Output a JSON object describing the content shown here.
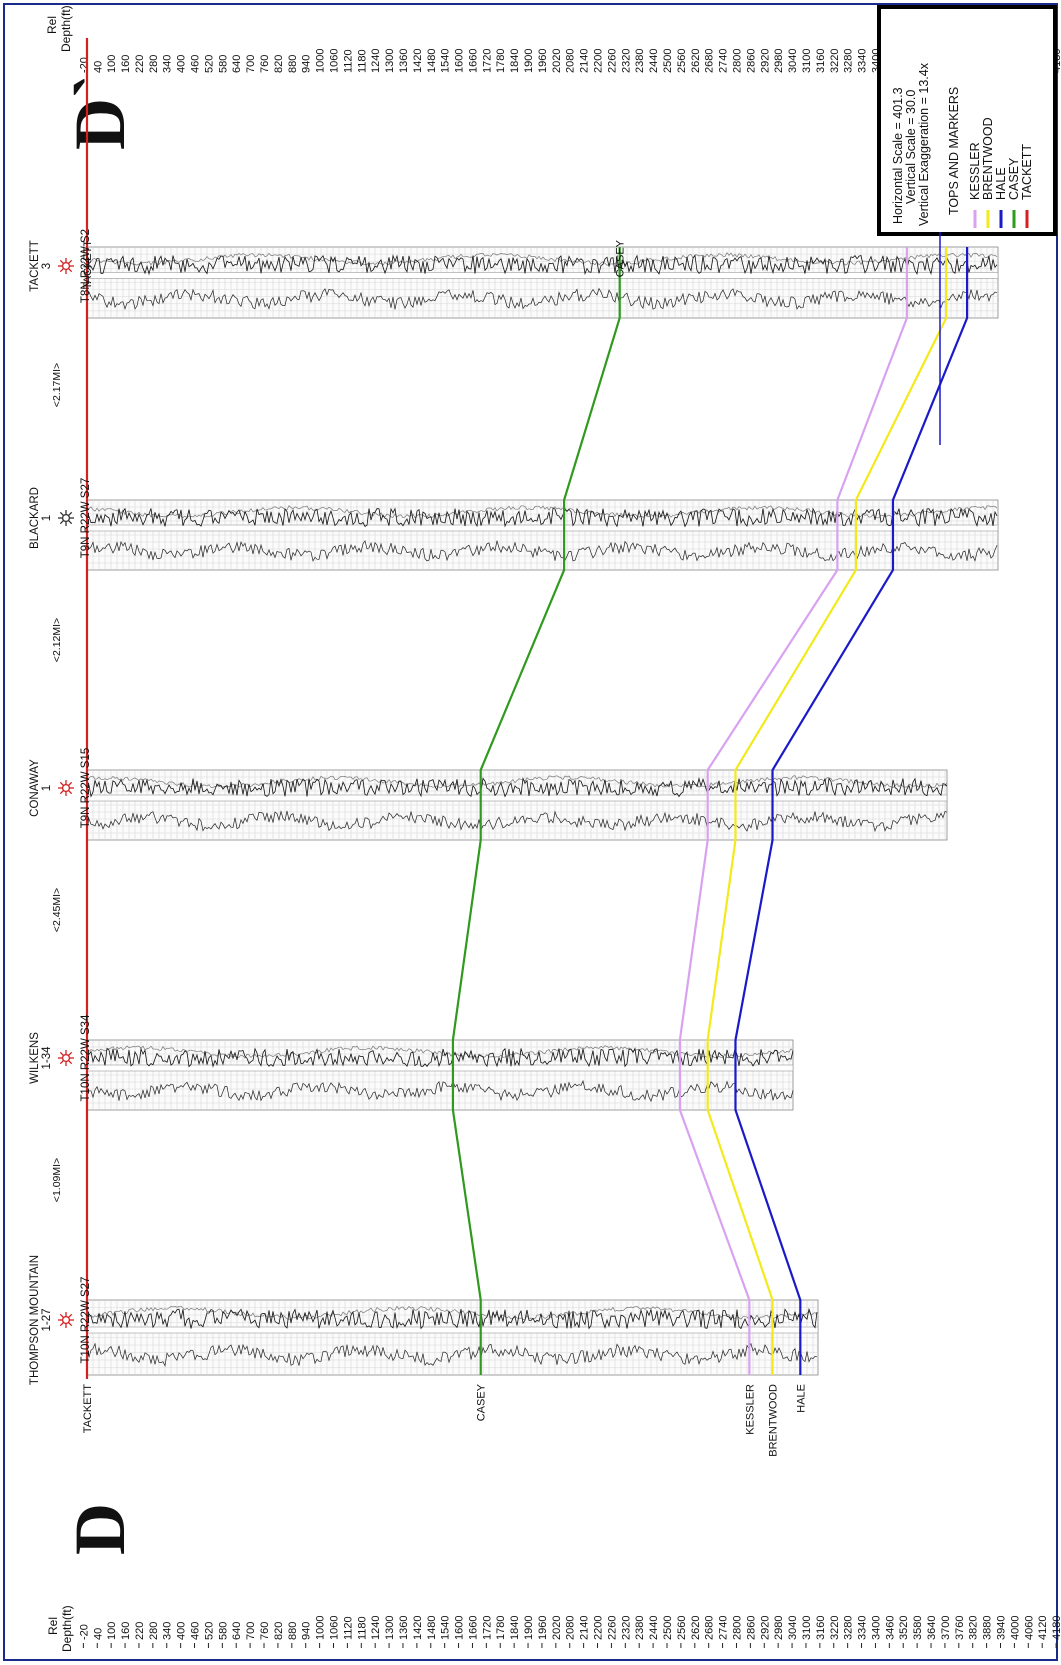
{
  "section": {
    "start_letter": "D",
    "end_letter": "D`"
  },
  "depth_axis": {
    "label_line1": "Rel",
    "label_line2": "Depth(ft)",
    "ticks": [
      "-20",
      "40",
      "100",
      "160",
      "220",
      "280",
      "340",
      "400",
      "460",
      "520",
      "580",
      "640",
      "700",
      "760",
      "820",
      "880",
      "940",
      "1000",
      "1060",
      "1120",
      "1180",
      "1240",
      "1300",
      "1360",
      "1420",
      "1480",
      "1540",
      "1600",
      "1660",
      "1720",
      "1780",
      "1840",
      "1900",
      "1960",
      "2020",
      "2080",
      "2140",
      "2200",
      "2260",
      "2320",
      "2380",
      "2440",
      "2500",
      "2560",
      "2620",
      "2680",
      "2740",
      "2800",
      "2860",
      "2920",
      "2980",
      "3040",
      "3100",
      "3160",
      "3220",
      "3280",
      "3340",
      "3400",
      "3460",
      "3520",
      "3580",
      "3640",
      "3700",
      "3760",
      "3820",
      "3880",
      "3940",
      "4000",
      "4060",
      "4120",
      "4180"
    ]
  },
  "wells": [
    {
      "name": "THOMPSON MOUNTAIN",
      "number": "1-27",
      "location": "T10N R22W S27"
    },
    {
      "name": "WILKENS",
      "number": "1-34",
      "location": "T10N R22W S34"
    },
    {
      "name": "CONAWAY",
      "number": "1",
      "location": "T9N R22W S15"
    },
    {
      "name": "BLACKARD",
      "number": "1",
      "location": "T9N R22W S27"
    },
    {
      "name": "TACKETT",
      "number": "3",
      "location": "T8N R22W S2"
    }
  ],
  "spacings": [
    "<1.09MI>",
    "<2.45MI>",
    "<2.12MI>",
    "<2.17MI>"
  ],
  "markers": {
    "tackett": {
      "label": "TACKETT",
      "color": "#d42020",
      "depths": [
        0,
        0,
        0,
        0,
        0
      ]
    },
    "casey": {
      "label": "CASEY",
      "color": "#2f9a1e",
      "depths": [
        1700,
        1580,
        1700,
        2060,
        2300
      ]
    },
    "kessler": {
      "label": "KESSLER",
      "color": "#d9a2f0",
      "depths": [
        2860,
        2560,
        2680,
        3240,
        3540
      ]
    },
    "brentwood": {
      "label": "BRENTWOOD",
      "color": "#f2ea1a",
      "depths": [
        2960,
        2680,
        2800,
        3320,
        3710
      ]
    },
    "hale": {
      "label": "HALE",
      "color": "#1a1ac8",
      "depths": [
        3080,
        2800,
        2960,
        3480,
        3800
      ]
    }
  },
  "legend": {
    "horizontal_scale": "Horizontal Scale = 401.3",
    "vertical_scale": "Vertical Scale = 30.0",
    "vertical_exaggeration": "Vertical Exaggeration = 13.4x",
    "title": "TOPS AND MARKERS",
    "items": [
      {
        "label": "KESSLER",
        "color": "#d9a2f0"
      },
      {
        "label": "BRENTWOOD",
        "color": "#f2ea1a"
      },
      {
        "label": "HALE",
        "color": "#1a1ac8"
      },
      {
        "label": "CASEY",
        "color": "#2f9a1e"
      },
      {
        "label": "TACKETT",
        "color": "#d42020"
      }
    ]
  }
}
